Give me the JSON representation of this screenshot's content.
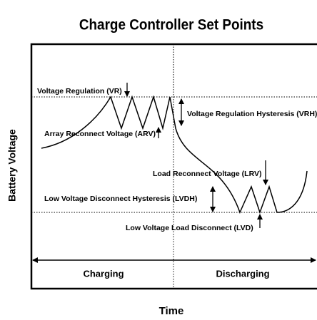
{
  "title": "Charge Controller Set Points",
  "y_axis_label": "Battery Voltage",
  "x_axis_label": "Time",
  "labels": {
    "vr": "Voltage Regulation (VR)",
    "arv": "Array Reconnect Voltage (ARV)",
    "vrh": "Voltage Regulation Hysteresis (VRH)",
    "lrv": "Load Reconnect Voltage (LRV)",
    "lvdh": "Low Voltage Disconnect Hysteresis (LVDH)",
    "lvd": "Low Voltage Load Disconnect (LVD)"
  },
  "phases": [
    "Charging",
    "Discharging"
  ]
}
